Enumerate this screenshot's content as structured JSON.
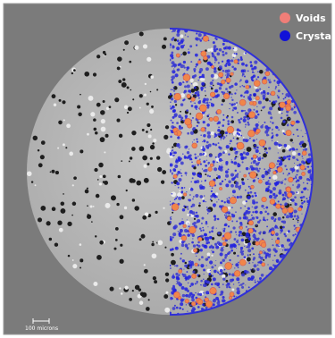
{
  "legend": {
    "items": [
      {
        "label": "Voids"
      },
      {
        "label": "Crystal"
      }
    ]
  },
  "scale_bar": {
    "label": "100 microns"
  }
}
